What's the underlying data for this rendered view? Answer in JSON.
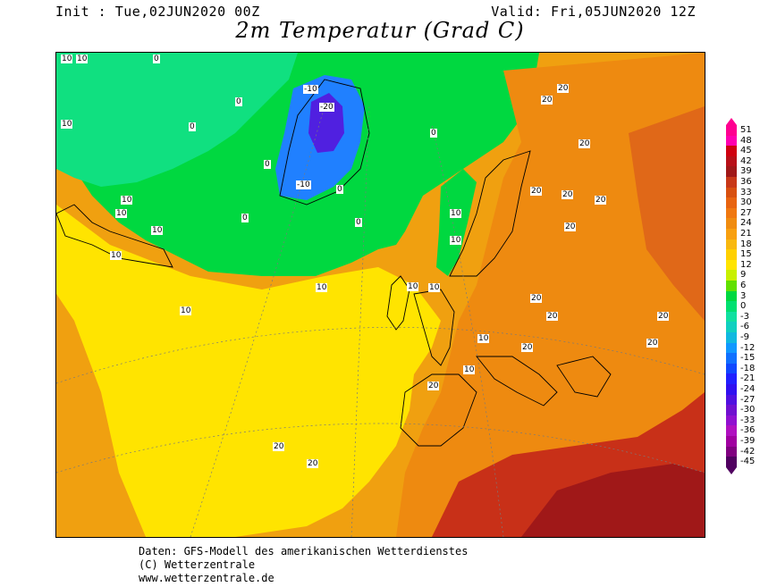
{
  "header": {
    "init": "Init : Tue,02JUN2020 00Z",
    "valid": "Valid: Fri,05JUN2020 12Z",
    "title": "2m Temperatur (Grad C)"
  },
  "map": {
    "region": "North Atlantic, Greenland and Europe",
    "colors": {
      "ocean_warm": "#f0a010",
      "ocean_cool": "#ffe400",
      "cold_green": "#00d840",
      "pale_green": "#10e080",
      "greenland_blue": "#2080ff",
      "greenland_core": "#5020e0",
      "europe_orange": "#ee8a10",
      "hot_red": "#c83018"
    },
    "contour_labels": [
      {
        "text": "10"
      },
      {
        "text": "10"
      },
      {
        "text": "10"
      },
      {
        "text": "10"
      },
      {
        "text": "10"
      },
      {
        "text": "10"
      },
      {
        "text": "10"
      },
      {
        "text": "10"
      },
      {
        "text": "10"
      },
      {
        "text": "10"
      },
      {
        "text": "0"
      },
      {
        "text": "0"
      },
      {
        "text": "0"
      },
      {
        "text": "0"
      },
      {
        "text": "0"
      },
      {
        "text": "0"
      },
      {
        "text": "0"
      },
      {
        "text": "0"
      },
      {
        "text": "-10"
      },
      {
        "text": "-20"
      },
      {
        "text": "-10"
      },
      {
        "text": "20"
      },
      {
        "text": "20"
      },
      {
        "text": "20"
      },
      {
        "text": "20"
      },
      {
        "text": "20"
      },
      {
        "text": "20"
      },
      {
        "text": "20"
      },
      {
        "text": "20"
      },
      {
        "text": "20"
      },
      {
        "text": "20"
      },
      {
        "text": "20"
      },
      {
        "text": "20"
      },
      {
        "text": "20"
      },
      {
        "text": "20"
      },
      {
        "text": "20"
      },
      {
        "text": "10"
      },
      {
        "text": "10"
      },
      {
        "text": "10"
      },
      {
        "text": "10"
      },
      {
        "text": "10"
      }
    ]
  },
  "legend": {
    "values": [
      "51",
      "48",
      "45",
      "42",
      "39",
      "36",
      "33",
      "30",
      "27",
      "24",
      "21",
      "18",
      "15",
      "12",
      "9",
      "6",
      "3",
      "0",
      "-3",
      "-6",
      "-9",
      "-12",
      "-15",
      "-18",
      "-21",
      "-24",
      "-27",
      "-30",
      "-33",
      "-36",
      "-39",
      "-42",
      "-45"
    ],
    "colors": [
      "#ff0090",
      "#ff00b0",
      "#d00010",
      "#b81018",
      "#a01818",
      "#c83818",
      "#d85010",
      "#e86410",
      "#f07810",
      "#f08c10",
      "#f8a010",
      "#f8b810",
      "#ffd000",
      "#ffe400",
      "#c8f000",
      "#60e000",
      "#00d840",
      "#00e070",
      "#10e0a0",
      "#10d0c0",
      "#10b8e0",
      "#1098ff",
      "#1070ff",
      "#1048ff",
      "#2020ff",
      "#3010f0",
      "#5010e0",
      "#7010d0",
      "#9010d0",
      "#b010c0",
      "#a000a0",
      "#800080",
      "#500060"
    ]
  },
  "footer": {
    "line1": "Daten: GFS-Modell des amerikanischen Wetterdienstes",
    "line2": "(C) Wetterzentrale",
    "line3": "www.wetterzentrale.de"
  }
}
